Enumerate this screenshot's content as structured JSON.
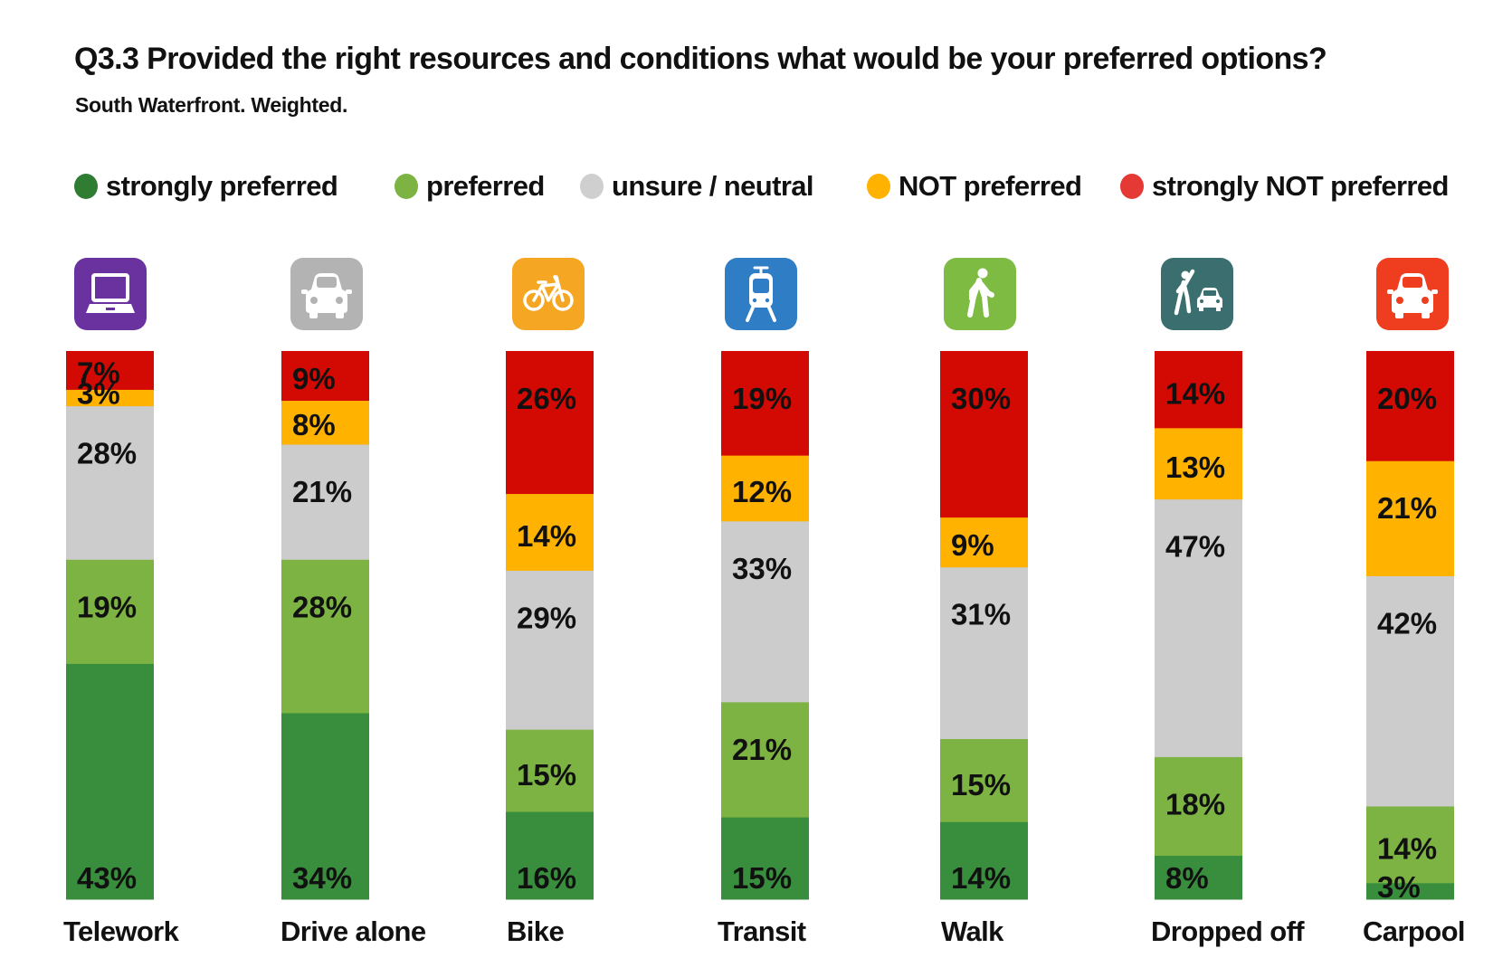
{
  "header": {
    "title": "Q3.3 Provided the right resources and conditions what would be your preferred options?",
    "subtitle": "South Waterfront. Weighted."
  },
  "legend": [
    {
      "key": "strongly_preferred",
      "label": "strongly preferred",
      "color": "#2e7d32"
    },
    {
      "key": "preferred",
      "label": "preferred",
      "color": "#7cb342"
    },
    {
      "key": "neutral",
      "label": "unsure / neutral",
      "color": "#cfcfcf"
    },
    {
      "key": "not_preferred",
      "label": "NOT preferred",
      "color": "#ffb300"
    },
    {
      "key": "strongly_not_preferred",
      "label": "strongly NOT preferred",
      "color": "#e53935"
    }
  ],
  "icons": [
    {
      "category": "Telework",
      "icon": "laptop-icon",
      "tile_color": "#6a329f"
    },
    {
      "category": "Drive alone",
      "icon": "car-icon",
      "tile_color": "#b3b3b3"
    },
    {
      "category": "Bike",
      "icon": "bicycle-icon",
      "tile_color": "#f5a623"
    },
    {
      "category": "Transit",
      "icon": "streetcar-icon",
      "tile_color": "#2f7dc4"
    },
    {
      "category": "Walk",
      "icon": "pedestrian-icon",
      "tile_color": "#7dbb42"
    },
    {
      "category": "Dropped off",
      "icon": "pedestrian-hailing-car-icon",
      "tile_color": "#3b6e6e"
    },
    {
      "category": "Carpool",
      "icon": "car-icon",
      "tile_color": "#ef3e1f"
    }
  ],
  "chart_data": {
    "type": "bar",
    "stacked": true,
    "orientation": "vertical",
    "normalized_percent": true,
    "title": "Q3.3 Provided the right resources and conditions what would be your preferred options?",
    "subtitle": "South Waterfront. Weighted.",
    "xlabel": "",
    "ylabel": "",
    "ylim": [
      0,
      100
    ],
    "grid": false,
    "legend_position": "top",
    "categories": [
      "Telework",
      "Drive alone",
      "Bike",
      "Transit",
      "Walk",
      "Dropped off",
      "Carpool"
    ],
    "series": [
      {
        "name": "strongly preferred",
        "color": "#388e3c",
        "values": [
          43,
          34,
          16,
          15,
          14,
          8,
          3
        ]
      },
      {
        "name": "preferred",
        "color": "#7cb342",
        "values": [
          19,
          28,
          15,
          21,
          15,
          18,
          14
        ]
      },
      {
        "name": "unsure / neutral",
        "color": "#cccccc",
        "values": [
          28,
          21,
          29,
          33,
          31,
          47,
          42
        ]
      },
      {
        "name": "NOT preferred",
        "color": "#ffb300",
        "values": [
          3,
          8,
          14,
          12,
          9,
          13,
          21
        ]
      },
      {
        "name": "strongly NOT preferred",
        "color": "#d20a03",
        "values": [
          7,
          9,
          26,
          19,
          30,
          14,
          20
        ]
      }
    ],
    "data_labels": [
      [
        "43%",
        "34%",
        "16%",
        "15%",
        "14%",
        "8%",
        "3%"
      ],
      [
        "19%",
        "28%",
        "15%",
        "21%",
        "15%",
        "18%",
        "14%"
      ],
      [
        "28%",
        "21%",
        "29%",
        "33%",
        "31%",
        "47%",
        "42%"
      ],
      [
        "3%",
        "8%",
        "14%",
        "12%",
        "9%",
        "13%",
        "21%"
      ],
      [
        "7%",
        "9%",
        "26%",
        "19%",
        "30%",
        "14%",
        "20%"
      ]
    ]
  }
}
